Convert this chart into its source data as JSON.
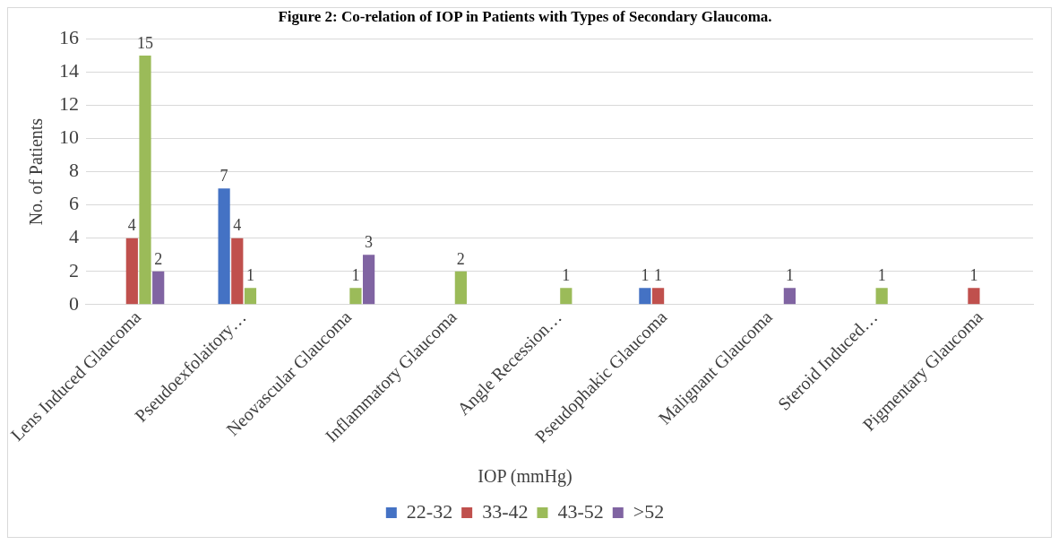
{
  "chart_data": {
    "type": "bar",
    "title": "Figure 2: Co-relation of IOP in Patients with Types of Secondary Glaucoma.",
    "ylabel": "No. of Patients",
    "legend_title": "IOP (mmHg)",
    "legend": "bottom",
    "grid": "y",
    "ylim": [
      0,
      16
    ],
    "yticks": [
      0,
      2,
      4,
      6,
      8,
      10,
      12,
      14,
      16
    ],
    "categories": [
      "Lens Induced Glaucoma",
      "Pseudoexfolaitory…",
      "Neovascular Glaucoma",
      "Inflammatory Glaucoma",
      "Angle Recession…",
      "Pseudophakic Glaucoma",
      "Malignant Glaucoma",
      "Steroid Induced…",
      "Pigmentary Glaucoma"
    ],
    "series": [
      {
        "name": "22-32",
        "color": "#4472c4",
        "values": [
          0,
          7,
          0,
          0,
          0,
          1,
          0,
          0,
          0
        ],
        "value_labels": [
          null,
          "7",
          null,
          null,
          null,
          "1",
          null,
          null,
          null
        ]
      },
      {
        "name": "33-42",
        "color": "#c0504d",
        "values": [
          4,
          4,
          0,
          0,
          0,
          1,
          0,
          0,
          1
        ],
        "value_labels": [
          "4",
          "4",
          null,
          null,
          null,
          "1",
          null,
          null,
          "1"
        ]
      },
      {
        "name": "43-52",
        "color": "#9bbb59",
        "values": [
          15,
          1,
          1,
          2,
          1,
          0,
          0,
          1,
          0
        ],
        "value_labels": [
          "15",
          "1",
          "1",
          "2",
          "1",
          null,
          null,
          "1",
          null
        ]
      },
      {
        "name": ">52",
        "color": "#8064a2",
        "values": [
          2,
          0,
          3,
          0,
          0,
          0,
          1,
          0,
          0
        ],
        "value_labels": [
          "2",
          null,
          "3",
          null,
          null,
          null,
          "1",
          null,
          null
        ]
      }
    ]
  }
}
